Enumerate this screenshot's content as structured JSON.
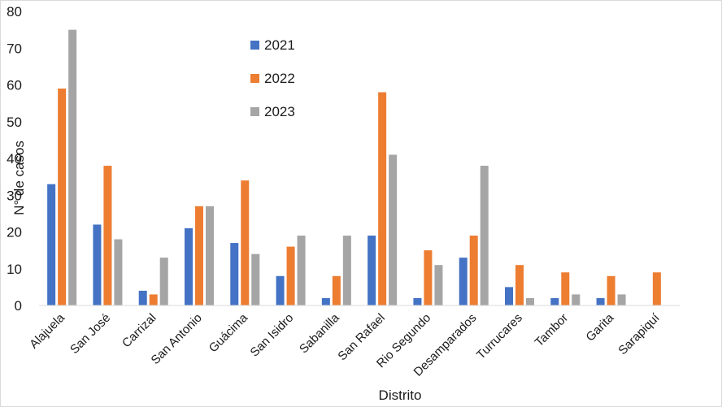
{
  "chart_data": {
    "type": "bar",
    "xlabel": "Distrito",
    "ylabel": "N° de casos",
    "ylim": [
      0,
      80
    ],
    "yticks": [
      0,
      10,
      20,
      30,
      40,
      50,
      60,
      70,
      80
    ],
    "grid": false,
    "legend_position": "top-center",
    "categories": [
      "Alajuela",
      "San José",
      "Carrizal",
      "San Antonio",
      "Guácima",
      "San Isidro",
      "Sabanilla",
      "San Rafael",
      "Rio Segundo",
      "Desamparados",
      "Turrucares",
      "Tambor",
      "Garita",
      "Sarapiquí"
    ],
    "series": [
      {
        "name": "2021",
        "color": "#4472c4",
        "values": [
          33,
          22,
          4,
          21,
          17,
          8,
          2,
          19,
          2,
          13,
          5,
          2,
          2,
          0
        ]
      },
      {
        "name": "2022",
        "color": "#ed7d31",
        "values": [
          59,
          38,
          3,
          27,
          34,
          16,
          8,
          58,
          15,
          19,
          11,
          9,
          8,
          9
        ]
      },
      {
        "name": "2023",
        "color": "#a5a5a5",
        "values": [
          75,
          18,
          13,
          27,
          14,
          19,
          19,
          41,
          11,
          38,
          2,
          3,
          3,
          0
        ]
      }
    ]
  }
}
